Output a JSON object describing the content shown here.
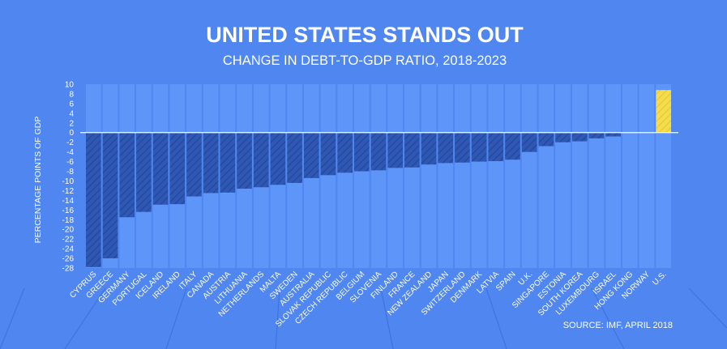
{
  "chart_data": {
    "type": "bar",
    "title": "UNITED STATES STANDS OUT",
    "subtitle": "CHANGE IN DEBT-TO-GDP RATIO, 2018-2023",
    "ylabel": "PERCENTAGE POINTS OF GDP",
    "xlabel": "",
    "ylim": [
      -28,
      10
    ],
    "yticks": [
      10,
      8,
      6,
      4,
      2,
      0,
      -2,
      -4,
      -6,
      -8,
      -10,
      -12,
      -14,
      -16,
      -18,
      -20,
      -22,
      -24,
      -26,
      -28
    ],
    "categories": [
      "CYPRUS",
      "GREECE",
      "GERMANY",
      "PORTUGAL",
      "ICELAND",
      "IRELAND",
      "ITALY",
      "CANADA",
      "AUSTRIA",
      "LITHUANIA",
      "NETHERLANDS",
      "MALTA",
      "SWEDEN",
      "AUSTRALIA",
      "SLOVAK REPUBLIC",
      "CZECH REPUBLIC",
      "BELGIUM",
      "SLOVENIA",
      "FINLAND",
      "FRANCE",
      "NEW ZEALAND",
      "JAPAN",
      "SWITZERLAND",
      "DENMARK",
      "LATVIA",
      "SPAIN",
      "U.K.",
      "SINGAPORE",
      "ESTONIA",
      "SOUTH KOREA",
      "LUXEMBOURG",
      "ISRAEL",
      "HONG KONG",
      "NORWAY",
      "U.S."
    ],
    "values": [
      -27.8,
      -26,
      -17.5,
      -16.4,
      -14.9,
      -14.8,
      -13.2,
      -12.5,
      -12.4,
      -11.6,
      -11.3,
      -10.8,
      -10.4,
      -9.4,
      -8.8,
      -8.3,
      -8,
      -7.8,
      -7.3,
      -7.2,
      -6.6,
      -6.3,
      -6.2,
      -6,
      -5.9,
      -5.6,
      -4,
      -2.8,
      -2,
      -1.8,
      -1.2,
      -0.8,
      0,
      0,
      8.8
    ],
    "highlight": "U.S.",
    "colors": {
      "background": "#4f86f0",
      "column": "#5e95f8",
      "negative_bar": "#2f58b4",
      "highlight_bar": "#f4dc4a"
    }
  },
  "source": "SOURCE: IMF, APRIL 2018"
}
